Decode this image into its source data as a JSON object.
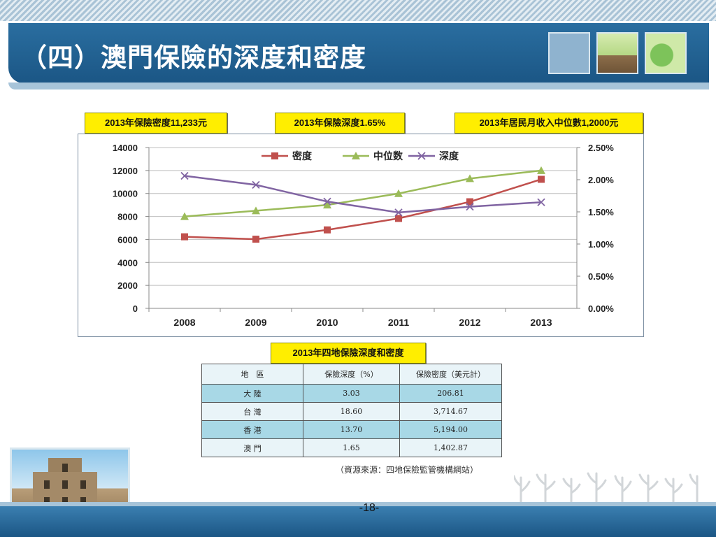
{
  "slide": {
    "title": "（四）澳門保險的深度和密度",
    "page_number": "-18-"
  },
  "callouts": {
    "density": "2013年保險密度11,233元",
    "depth": "2013年保險深度1.65%",
    "income": "2013年居民月收入中位數1,2000元",
    "table_title": "2013年四地保險深度和密度"
  },
  "chart_data": {
    "type": "line",
    "categories": [
      "2008",
      "2009",
      "2010",
      "2011",
      "2012",
      "2013"
    ],
    "y_left": {
      "ylim": [
        0,
        14000
      ],
      "ticks": [
        "0",
        "2000",
        "4000",
        "6000",
        "8000",
        "10000",
        "12000",
        "14000"
      ]
    },
    "y_right": {
      "ylim": [
        0,
        2.5
      ],
      "ticks": [
        "0.00%",
        "0.50%",
        "1.00%",
        "1.50%",
        "2.00%",
        "2.50%"
      ]
    },
    "legend_position": "top",
    "grid": true,
    "series": [
      {
        "name": "密度",
        "axis": "left",
        "color": "#c0504d",
        "marker": "square",
        "values": [
          6230,
          6020,
          6830,
          7830,
          9280,
          11233
        ]
      },
      {
        "name": "中位数",
        "axis": "left",
        "color": "#9bbb59",
        "marker": "triangle",
        "values": [
          8000,
          8500,
          9000,
          10000,
          11300,
          12000
        ]
      },
      {
        "name": "深度",
        "axis": "right",
        "color": "#8064a2",
        "marker": "x",
        "values": [
          2.06,
          1.92,
          1.66,
          1.49,
          1.58,
          1.65
        ]
      }
    ]
  },
  "table": {
    "headers": [
      "地　區",
      "保險深度（%）",
      "保險密度（美元計）"
    ],
    "rows": [
      [
        "大 陸",
        "3.03",
        "206.81"
      ],
      [
        "台 灣",
        "18.60",
        "3,714.67"
      ],
      [
        "香 港",
        "13.70",
        "5,194.00"
      ],
      [
        "澳 門",
        "1.65",
        "1,402.87"
      ]
    ]
  },
  "source_note": "（資源來源：四地保險監管機構網站）"
}
